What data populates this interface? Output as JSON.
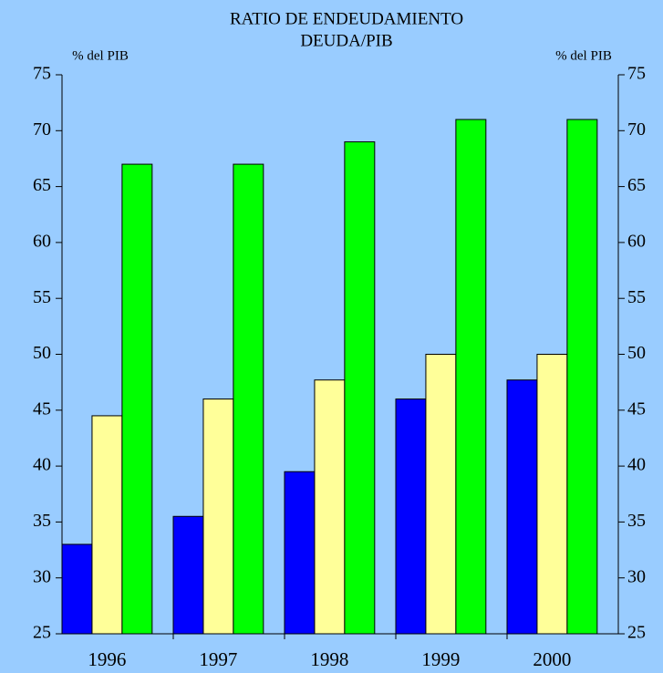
{
  "chart_data": {
    "type": "bar",
    "title": "RATIO DE ENDEUDAMIENTO",
    "subtitle": "DEUDA/PIB",
    "y_label": "% del PIB",
    "y2_label": "% del PIB",
    "categories": [
      "1996",
      "1997",
      "1998",
      "1999",
      "2000"
    ],
    "series": [
      {
        "color": "#0000ff",
        "values": [
          33,
          35.5,
          39.5,
          46,
          47.7
        ]
      },
      {
        "color": "#ffff99",
        "values": [
          44.5,
          46,
          47.7,
          50,
          50
        ]
      },
      {
        "color": "#00ff00",
        "values": [
          67,
          67,
          69,
          71,
          71
        ]
      }
    ],
    "ylim": [
      25,
      75
    ],
    "yticks": [
      25,
      30,
      35,
      40,
      45,
      50,
      55,
      60,
      65,
      70,
      75
    ],
    "y2lim": [
      25,
      75
    ],
    "y2ticks": [
      25,
      30,
      35,
      40,
      45,
      50,
      55,
      60,
      65,
      70,
      75
    ],
    "grid": false
  }
}
